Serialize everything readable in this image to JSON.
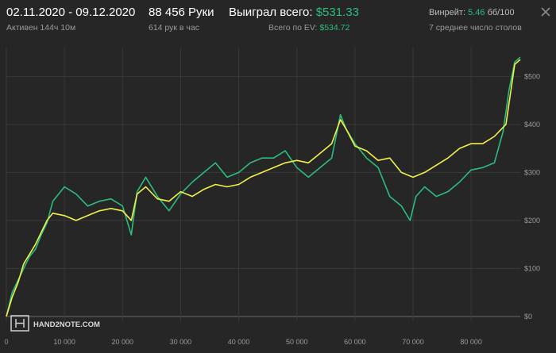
{
  "header": {
    "date_range": "02.11.2020 - 09.12.2020",
    "active": "Активен 144ч 10м",
    "hands": "88 456 Руки",
    "hands_per_hour": "614 рук в час",
    "won_total_label": "Выиграл всего:",
    "won_total_value": "$531.33",
    "ev_total_label": "Всего по EV:",
    "ev_total_value": "$534.72",
    "winrate_label": "Винрейт:",
    "winrate_value": "5.46",
    "winrate_unit": "бб/100",
    "tables_avg": "7 среднее число столов"
  },
  "logo_text": "HAND2NOTE.COM",
  "colors": {
    "background": "#262626",
    "grid": "#3a3a3a",
    "won_line": "#2bbd7e",
    "ev_line": "#f2f04a",
    "accent_green": "#2bbd7e"
  },
  "chart_data": {
    "type": "line",
    "xlim": [
      0,
      88456
    ],
    "ylim": [
      -10,
      560
    ],
    "x_ticks": [
      0,
      10000,
      20000,
      30000,
      40000,
      50000,
      60000,
      70000,
      80000
    ],
    "x_tick_labels": [
      "0",
      "10 000",
      "20 000",
      "30 000",
      "40 000",
      "50 000",
      "60 000",
      "70 000",
      "80 000"
    ],
    "y_ticks": [
      0,
      100,
      200,
      300,
      400,
      500
    ],
    "y_tick_labels": [
      "$0",
      "$100",
      "$200",
      "$300",
      "$400",
      "$500"
    ],
    "grid": true,
    "series": [
      {
        "key": "won",
        "color": "#2bbd7e",
        "x": [
          0,
          1000,
          2000,
          3000,
          4000,
          5000,
          6000,
          7000,
          8000,
          9000,
          10000,
          12000,
          14000,
          16000,
          18000,
          20000,
          21500,
          22500,
          24000,
          26000,
          28000,
          30000,
          32000,
          34000,
          36000,
          38000,
          40000,
          42000,
          44000,
          46000,
          48000,
          50000,
          52000,
          54000,
          56000,
          57500,
          58500,
          60000,
          62000,
          64000,
          66000,
          68000,
          69500,
          70500,
          72000,
          74000,
          76000,
          78000,
          80000,
          82000,
          84000,
          85500,
          86500,
          87500,
          88456
        ],
        "y": [
          0,
          50,
          75,
          100,
          125,
          140,
          170,
          195,
          240,
          255,
          270,
          255,
          230,
          240,
          245,
          230,
          170,
          260,
          290,
          250,
          220,
          255,
          280,
          300,
          320,
          290,
          300,
          320,
          330,
          330,
          345,
          310,
          290,
          310,
          330,
          420,
          390,
          360,
          330,
          310,
          250,
          230,
          200,
          250,
          270,
          250,
          260,
          280,
          305,
          310,
          320,
          385,
          470,
          530,
          540
        ]
      },
      {
        "key": "ev",
        "color": "#f2f04a",
        "x": [
          0,
          1000,
          2000,
          3000,
          4000,
          5000,
          6000,
          7000,
          8000,
          10000,
          12000,
          14000,
          16000,
          18000,
          20000,
          21500,
          22500,
          24000,
          26000,
          28000,
          30000,
          32000,
          34000,
          36000,
          38000,
          40000,
          42000,
          44000,
          46000,
          48000,
          50000,
          52000,
          54000,
          56000,
          57500,
          58500,
          60000,
          62000,
          64000,
          66000,
          68000,
          70000,
          72000,
          74000,
          76000,
          78000,
          80000,
          82000,
          84000,
          86000,
          87500,
          88456
        ],
        "y": [
          0,
          40,
          70,
          110,
          130,
          150,
          175,
          200,
          215,
          210,
          200,
          210,
          220,
          225,
          220,
          200,
          255,
          270,
          245,
          240,
          260,
          250,
          265,
          275,
          270,
          275,
          290,
          300,
          310,
          320,
          325,
          320,
          340,
          360,
          410,
          390,
          355,
          345,
          325,
          330,
          300,
          290,
          300,
          315,
          330,
          350,
          360,
          360,
          375,
          400,
          525,
          535
        ]
      }
    ]
  }
}
